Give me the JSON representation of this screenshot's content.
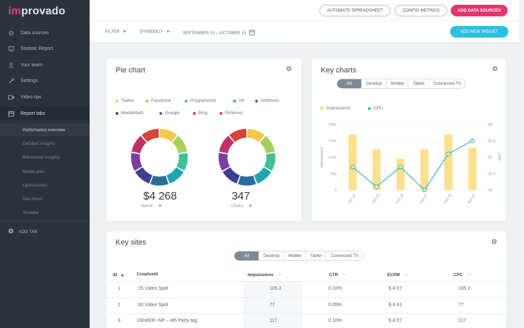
{
  "app": {
    "logo_im": "im",
    "logo_rest": "provado"
  },
  "sidebar": {
    "items": [
      {
        "label": "Data sources",
        "icon": "gear-icon"
      },
      {
        "label": "Statistic Report",
        "icon": "monitor-icon"
      },
      {
        "label": "Your team",
        "icon": "person-icon"
      },
      {
        "label": "Settings",
        "icon": "wrench-icon"
      },
      {
        "label": "Video tips",
        "icon": "video-icon"
      },
      {
        "label": "Report tabs",
        "icon": "calendar-icon"
      }
    ],
    "subitems": [
      "Perfomance overview",
      "Detailed insights",
      "Behavioral insights",
      "Media plan",
      "Optimization",
      "Site direct",
      "Youtube"
    ],
    "add_tab": "ADD TAB"
  },
  "topbar": {
    "automate": "AUTOMATE SPREADSHEET",
    "config": "CONFIG METRICS",
    "add_sources": "ADD DATA SOURCES"
  },
  "filterbar": {
    "filter": "FILTER",
    "period": "BYWEEKLY",
    "date_range": "SEPTEMBER 15 – OCTOBER 15",
    "add_widget": "ADD NEW WIDGET"
  },
  "pie_card": {
    "title": "Pie chart",
    "legend": [
      {
        "label": "Twitter",
        "color": "#f2c94c"
      },
      {
        "label": "Facebook",
        "color": "#a7cf5a"
      },
      {
        "label": "Programmati",
        "color": "#3ec19a"
      },
      {
        "label": "VK",
        "color": "#1fa7b0"
      },
      {
        "label": "AdWords",
        "color": "#2a6f97"
      },
      {
        "label": "MediaMath",
        "color": "#3b3f8f"
      },
      {
        "label": "Google",
        "color": "#7b3fa0"
      },
      {
        "label": "Bing",
        "color": "#c2306b"
      },
      {
        "label": "Pinterest",
        "color": "#d64537"
      }
    ],
    "spent_value": "$4 268",
    "spent_label": "Spent",
    "clicks_value": "347",
    "clicks_label": "Clicks"
  },
  "key_charts": {
    "title": "Key charts",
    "tabs": [
      "All",
      "Desktop",
      "Mobile",
      "Tablet",
      "Connected TV"
    ],
    "legend_impressions": "Impressions",
    "legend_cpc": "CPC",
    "color_bar": "#fbe08e",
    "color_line": "#2fb5b5"
  },
  "chart_data": {
    "type": "bar",
    "categories": [
      "Sep 04",
      "Sep 05",
      "Sep 06",
      "Sep 07",
      "Sep 08",
      "Sep 09"
    ],
    "series": [
      {
        "name": "Impressions",
        "type": "bar",
        "values": [
          170000,
          125000,
          95000,
          125000,
          170000,
          128000
        ]
      },
      {
        "name": "CPC",
        "type": "line",
        "values": [
          1.7,
          1.1,
          1.7,
          1.0,
          2.1,
          2.5
        ]
      }
    ],
    "ylabel": "Impressions",
    "y2label": "CPC",
    "yticks": [
      "200k",
      "150k",
      "100k",
      "50k",
      "0"
    ],
    "y2ticks": [
      "$3",
      "$2.5",
      "$2",
      "$1.5",
      "$1"
    ],
    "ylim": [
      0,
      200000
    ],
    "y2lim": [
      1,
      3
    ],
    "legend": "top-left"
  },
  "key_sites": {
    "title": "Key sites",
    "tabs": [
      "All",
      "Desktop",
      "Mobile",
      "Tablet",
      "Connected TV"
    ],
    "headers": [
      "ID",
      "CreativeId",
      "Impressions",
      "CTR",
      "ECPM",
      "CPC"
    ],
    "rows": [
      {
        "id": "1",
        "creative": ":15 Video Spot",
        "impressions": "105.2",
        "ctr": "0.10%",
        "ecpm": "$ 4.57",
        "cpc": "105.2"
      },
      {
        "id": "2",
        "creative": ":30 Video Spot",
        "impressions": "77",
        "ctr": "0.05%",
        "ecpm": "$ 4.41",
        "cpc": "77"
      },
      {
        "id": "3",
        "creative": "160x600 -NP – 4th Party tag",
        "impressions": "117",
        "ctr": "0.10%",
        "ecpm": "$ 4.57",
        "cpc": "117"
      }
    ]
  }
}
